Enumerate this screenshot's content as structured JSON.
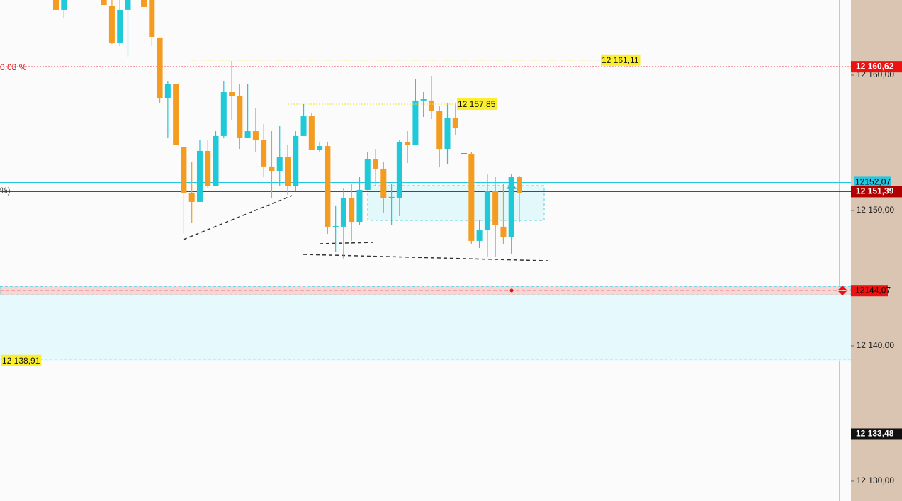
{
  "chart_data": {
    "type": "candlestick",
    "ylim": [
      12128.53,
      12165.55
    ],
    "yticks": [
      {
        "value": 12130,
        "label": "12 130,00"
      },
      {
        "value": 12140,
        "label": "12 140,00"
      },
      {
        "value": 12150,
        "label": "12 150,00"
      },
      {
        "value": 12160,
        "label": "12 160,00"
      }
    ],
    "up_color": "#1fc9d8",
    "down_color": "#f39c1f",
    "open": [
      12165.55,
      12164.82,
      null,
      null,
      null,
      null,
      12165.55,
      12165.13,
      12162.41,
      12164.82,
      null,
      12165.55,
      12165.55,
      12162.78,
      12158.32,
      12159.37,
      12154.71,
      12151.31,
      12150.63,
      12154.4,
      12151.83,
      12155.5,
      12158.74,
      12158.43,
      12155.34,
      12155.86,
      12155.18,
      12153.25,
      12152.88,
      12153.93,
      12151.83,
      12155.5,
      12156.96,
      12154.45,
      12154.76,
      12148.8,
      12148.8,
      12150.89,
      12149.16,
      12151.52,
      12153.82,
      12153.09,
      12150.89,
      12150.89,
      12155.08,
      12154.82,
      12158.12,
      12158.12,
      12157.33,
      12154.55,
      12156.81,
      null,
      12154.19,
      12147.75,
      12148.53,
      12151.41,
      12148.8,
      12148.01,
      12152.46
    ],
    "high": [
      12165.55,
      12165.55,
      null,
      null,
      null,
      null,
      12165.55,
      12165.55,
      12165.55,
      12165.55,
      null,
      12165.55,
      12165.55,
      12162.78,
      12159.53,
      12159.37,
      12154.71,
      12153.61,
      12155.18,
      12155.18,
      12155.86,
      12159.53,
      12161.05,
      12159.37,
      12159.37,
      12157.54,
      12156.39,
      12155.86,
      12156.23,
      12154.82,
      12155.86,
      12157.85,
      12157.17,
      12155.08,
      12155.08,
      12150.37,
      12151.62,
      12151.94,
      12152.46,
      12154.29,
      12154.55,
      12153.61,
      12151.94,
      12155.18,
      12155.86,
      12159.69,
      12158.74,
      12159.95,
      12157.7,
      12157.96,
      12157.96,
      null,
      12154.29,
      12149.32,
      12152.72,
      12152.46,
      12151.94,
      12152.72,
      12152.57
    ],
    "low": [
      12164.82,
      12164.24,
      null,
      null,
      null,
      null,
      12165.18,
      12162.3,
      12162.15,
      12161.36,
      null,
      12165.03,
      12162.15,
      12157.96,
      12155.34,
      12154.82,
      12148.27,
      12149.06,
      12150.63,
      12151.68,
      12151.83,
      12155.34,
      12156.65,
      12154.55,
      12155.34,
      12154.29,
      12152.46,
      12150.89,
      12151.83,
      12151.15,
      12151.41,
      12155.5,
      12154.45,
      12154.29,
      12148.27,
      12146.96,
      12146.44,
      12147.75,
      12148.9,
      12151.52,
      12151.83,
      12149.84,
      12148.9,
      12149.58,
      12153.51,
      12154.82,
      12156.91,
      12156.75,
      12153.19,
      12153.4,
      12155.6,
      null,
      12147.49,
      12147.22,
      12146.6,
      12146.6,
      12147.49,
      12146.81,
      12149.16
    ],
    "close": [
      12164.82,
      12165.55,
      null,
      null,
      null,
      null,
      12165.18,
      12162.41,
      12164.82,
      12165.55,
      null,
      12165.03,
      12162.83,
      12158.32,
      12159.37,
      12154.82,
      12151.31,
      12150.63,
      12154.4,
      12151.83,
      12155.5,
      12158.74,
      12158.43,
      12155.34,
      12155.86,
      12155.18,
      12153.25,
      12152.88,
      12153.93,
      12151.83,
      12155.5,
      12156.96,
      12154.45,
      12154.76,
      12148.8,
      12148.85,
      12150.89,
      12149.16,
      12151.52,
      12153.82,
      12153.09,
      12150.89,
      12151.0,
      12155.08,
      12154.82,
      12158.12,
      12158.22,
      12157.33,
      12154.55,
      12156.81,
      12156.07,
      null,
      12147.75,
      12148.53,
      12151.41,
      12148.9,
      12148.01,
      12152.46,
      12151.31
    ],
    "levels": [
      {
        "value": 12160.62,
        "label": "12 160,62",
        "color": "#ee1111",
        "text_color": "#ffffff",
        "style": "dotted"
      },
      {
        "value": 12152.07,
        "label": "12152,07",
        "color": "#25c6e0",
        "text_color": "#000000",
        "style": "solid"
      },
      {
        "value": 12151.39,
        "label": "12 151,39",
        "color": "#b00000",
        "text_color": "#ffffff",
        "style": "solid"
      },
      {
        "value": 12144.07,
        "label": "12144,07",
        "color": "#ee1111",
        "text_color": "#000000",
        "style": "dashed"
      },
      {
        "value": 12133.48,
        "label": "12 133,48",
        "color": "#111111",
        "text_color": "#ffffff",
        "style": "thin"
      }
    ],
    "markers": [
      {
        "value": 12161.11,
        "label": "12 161,11"
      },
      {
        "value": 12157.85,
        "label": "12 157,85"
      },
      {
        "value": 12138.91,
        "label": "12 138,91"
      }
    ],
    "annotations": [
      "0,08 %",
      "%)"
    ]
  }
}
